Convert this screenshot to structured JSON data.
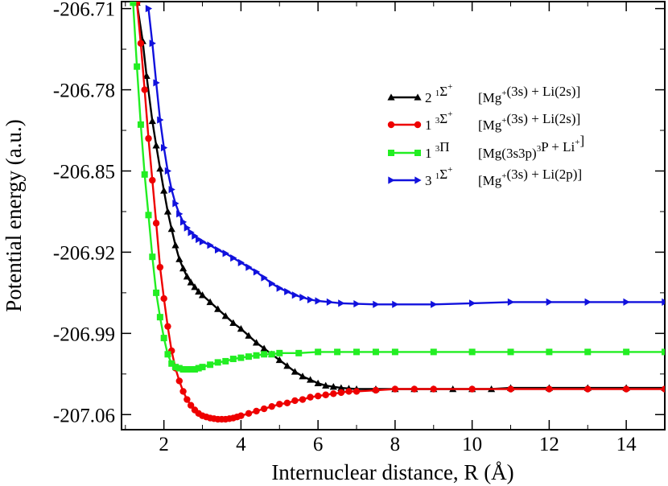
{
  "chart_data": {
    "type": "line",
    "title": "",
    "xlabel": "Internuclear distance, R (Å)",
    "ylabel": "Potential energy (a.u.)",
    "xlim": [
      0.9,
      15.0
    ],
    "ylim": [
      -207.073,
      -206.704
    ],
    "x_ticks": [
      2,
      4,
      6,
      8,
      10,
      12,
      14
    ],
    "x_tick_labels": [
      "2",
      "4",
      "6",
      "8",
      "10",
      "12",
      "14"
    ],
    "y_ticks": [
      -206.71,
      -206.78,
      -206.85,
      -206.92,
      -206.99,
      -207.06
    ],
    "y_tick_labels": [
      "-206.71",
      "-206.78",
      "-206.85",
      "-206.92",
      "-206.99",
      "-207.06"
    ],
    "grid": false,
    "legend_position": "upper-right",
    "series": [
      {
        "name": "2 1Σ+ [Mg+(3s) + Li(2s)]",
        "legend": {
          "n": "2",
          "mult": "1",
          "sym": "Σ",
          "symsup": "+",
          "state": "[Mg",
          "statesup": "+",
          "rest": "(3s) + Li(2s)]"
        },
        "color": "#000000",
        "marker": "triangle-up",
        "x": [
          1.3,
          1.45,
          1.55,
          1.7,
          1.8,
          1.9,
          2.0,
          2.1,
          2.2,
          2.3,
          2.4,
          2.5,
          2.6,
          2.7,
          2.8,
          2.9,
          3.0,
          3.2,
          3.4,
          3.6,
          3.8,
          4.0,
          4.2,
          4.4,
          4.6,
          4.8,
          5.0,
          5.2,
          5.4,
          5.6,
          5.8,
          6.0,
          6.2,
          6.4,
          6.6,
          6.8,
          7.0,
          7.5,
          8.0,
          8.5,
          9.0,
          9.5,
          10.0,
          10.5,
          11.0,
          12.0,
          13.0,
          14.0,
          15.0
        ],
        "y": [
          -206.705,
          -206.738,
          -206.768,
          -206.807,
          -206.828,
          -206.848,
          -206.867,
          -206.885,
          -206.9,
          -206.914,
          -206.926,
          -206.934,
          -206.941,
          -206.946,
          -206.95,
          -206.954,
          -206.957,
          -206.963,
          -206.969,
          -206.975,
          -206.981,
          -206.986,
          -206.992,
          -206.998,
          -207.003,
          -207.008,
          -207.013,
          -207.018,
          -207.023,
          -207.027,
          -207.03,
          -207.033,
          -207.035,
          -207.036,
          -207.037,
          -207.0375,
          -207.038,
          -207.038,
          -207.038,
          -207.038,
          -207.038,
          -207.038,
          -207.038,
          -207.038,
          -207.037,
          -207.037,
          -207.037,
          -207.037,
          -207.037
        ]
      },
      {
        "name": "1 3Σ+ [Mg+(3s) + Li(2s)]",
        "legend": {
          "n": "1",
          "mult": "3",
          "sym": "Σ",
          "symsup": "+",
          "state": "[Mg",
          "statesup": "+",
          "rest": "(3s) + Li(2s)]"
        },
        "color": "#ee0000",
        "marker": "circle",
        "x": [
          1.3,
          1.4,
          1.5,
          1.6,
          1.7,
          1.8,
          1.9,
          2.0,
          2.1,
          2.2,
          2.3,
          2.4,
          2.5,
          2.6,
          2.7,
          2.8,
          2.9,
          3.0,
          3.1,
          3.2,
          3.3,
          3.4,
          3.5,
          3.6,
          3.7,
          3.8,
          3.9,
          4.0,
          4.2,
          4.4,
          4.6,
          4.8,
          5.0,
          5.2,
          5.4,
          5.6,
          5.8,
          6.0,
          6.2,
          6.4,
          6.6,
          6.8,
          7.0,
          7.5,
          8.0,
          8.5,
          9.0,
          10.0,
          11.0,
          12.0,
          13.0,
          14.0,
          15.0
        ],
        "y": [
          -206.705,
          -206.74,
          -206.78,
          -206.822,
          -206.858,
          -206.895,
          -206.933,
          -206.96,
          -206.984,
          -207.005,
          -207.02,
          -207.031,
          -207.04,
          -207.047,
          -207.052,
          -207.056,
          -207.059,
          -207.061,
          -207.062,
          -207.063,
          -207.0635,
          -207.064,
          -207.064,
          -207.064,
          -207.0635,
          -207.063,
          -207.062,
          -207.061,
          -207.059,
          -207.057,
          -207.055,
          -207.053,
          -207.051,
          -207.05,
          -207.048,
          -207.047,
          -207.045,
          -207.044,
          -207.043,
          -207.042,
          -207.041,
          -207.04,
          -207.04,
          -207.039,
          -207.038,
          -207.038,
          -207.038,
          -207.038,
          -207.038,
          -207.038,
          -207.038,
          -207.038,
          -207.038
        ]
      },
      {
        "name": "1 3Π [Mg(3s3p)3P + Li+]",
        "legend": {
          "n": "1",
          "mult": "3",
          "sym": "Π",
          "symsup": "",
          "state": "[Mg(3s3p)",
          "statesup": "3",
          "rest": "P + Li",
          "restsup": "+",
          "close": "]"
        },
        "color": "#22ee22",
        "marker": "square",
        "x": [
          1.2,
          1.3,
          1.4,
          1.5,
          1.6,
          1.7,
          1.8,
          1.9,
          2.0,
          2.1,
          2.2,
          2.3,
          2.4,
          2.5,
          2.6,
          2.7,
          2.8,
          2.9,
          3.0,
          3.2,
          3.4,
          3.6,
          3.8,
          4.0,
          4.2,
          4.4,
          4.6,
          4.8,
          5.0,
          5.5,
          6.0,
          6.5,
          7.0,
          7.5,
          8.0,
          9.0,
          10.0,
          11.0,
          12.0,
          13.0,
          14.0,
          15.0
        ],
        "y": [
          -206.705,
          -206.76,
          -206.81,
          -206.853,
          -206.888,
          -206.924,
          -206.955,
          -206.976,
          -206.994,
          -207.008,
          -207.016,
          -207.019,
          -207.02,
          -207.021,
          -207.021,
          -207.021,
          -207.021,
          -207.02,
          -207.019,
          -207.017,
          -207.015,
          -207.014,
          -207.012,
          -207.011,
          -207.01,
          -207.009,
          -207.008,
          -207.008,
          -207.007,
          -207.007,
          -207.006,
          -207.006,
          -207.006,
          -207.006,
          -207.006,
          -207.006,
          -207.006,
          -207.006,
          -207.006,
          -207.006,
          -207.006,
          -207.006
        ]
      },
      {
        "name": "3 1Σ+ [Mg+(3s) + Li(2p)]",
        "legend": {
          "n": "3",
          "mult": "1",
          "sym": "Σ",
          "symsup": "+",
          "state": "[Mg",
          "statesup": "+",
          "rest": "(3s) + Li(2p)]"
        },
        "color": "#1111dd",
        "marker": "triangle-right",
        "x": [
          1.6,
          1.7,
          1.8,
          1.9,
          2.0,
          2.1,
          2.2,
          2.3,
          2.4,
          2.5,
          2.6,
          2.7,
          2.8,
          2.9,
          3.0,
          3.2,
          3.4,
          3.6,
          3.8,
          4.0,
          4.2,
          4.4,
          4.6,
          4.8,
          5.0,
          5.2,
          5.4,
          5.6,
          5.8,
          6.0,
          6.3,
          6.6,
          7.0,
          7.5,
          8.0,
          9.0,
          10.0,
          11.0,
          12.0,
          13.0,
          14.0,
          15.0
        ],
        "y": [
          -206.71,
          -206.74,
          -206.774,
          -206.806,
          -206.83,
          -206.85,
          -206.866,
          -206.878,
          -206.887,
          -206.894,
          -206.899,
          -206.903,
          -206.906,
          -206.909,
          -206.911,
          -206.914,
          -206.918,
          -206.921,
          -206.925,
          -206.929,
          -206.933,
          -206.937,
          -206.942,
          -206.947,
          -206.951,
          -206.954,
          -206.957,
          -206.959,
          -206.961,
          -206.962,
          -206.963,
          -206.964,
          -206.9645,
          -206.965,
          -206.965,
          -206.965,
          -206.964,
          -206.963,
          -206.963,
          -206.963,
          -206.963,
          -206.963
        ]
      }
    ]
  }
}
